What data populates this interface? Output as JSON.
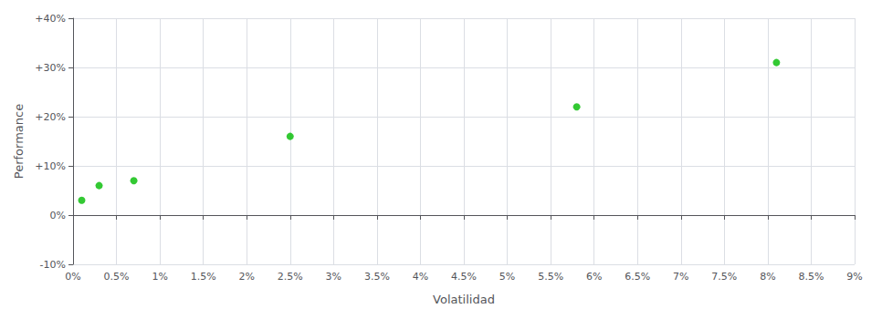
{
  "chart_data": {
    "type": "scatter",
    "xlabel": "Volatilidad",
    "ylabel": "Performance",
    "x": [
      0.001,
      0.003,
      0.007,
      0.025,
      0.058,
      0.081
    ],
    "values": [
      0.03,
      0.06,
      0.07,
      0.16,
      0.22,
      0.31
    ],
    "color": "#00bb00",
    "marker": "circle",
    "xlim": [
      0.0,
      0.09
    ],
    "ylim": [
      -0.1,
      0.4
    ],
    "xticks": [
      {
        "value": 0.0,
        "label": "0%"
      },
      {
        "value": 0.005,
        "label": "0.5%"
      },
      {
        "value": 0.01,
        "label": "1%"
      },
      {
        "value": 0.015,
        "label": "1.5%"
      },
      {
        "value": 0.02,
        "label": "2%"
      },
      {
        "value": 0.025,
        "label": "2.5%"
      },
      {
        "value": 0.03,
        "label": "3%"
      },
      {
        "value": 0.035,
        "label": "3.5%"
      },
      {
        "value": 0.04,
        "label": "4%"
      },
      {
        "value": 0.045,
        "label": "4.5%"
      },
      {
        "value": 0.05,
        "label": "5%"
      },
      {
        "value": 0.055,
        "label": "5.5%"
      },
      {
        "value": 0.06,
        "label": "6%"
      },
      {
        "value": 0.065,
        "label": "6.5%"
      },
      {
        "value": 0.07,
        "label": "7%"
      },
      {
        "value": 0.075,
        "label": "7.5%"
      },
      {
        "value": 0.08,
        "label": "8%"
      },
      {
        "value": 0.085,
        "label": "8.5%"
      },
      {
        "value": 0.09,
        "label": "9%"
      }
    ],
    "yticks": [
      {
        "value": -0.1,
        "label": "-10%"
      },
      {
        "value": 0.0,
        "label": "0%"
      },
      {
        "value": 0.1,
        "label": "+10%"
      },
      {
        "value": 0.2,
        "label": "+20%"
      },
      {
        "value": 0.3,
        "label": "+30%"
      },
      {
        "value": 0.4,
        "label": "+40%"
      }
    ],
    "grid": true
  }
}
